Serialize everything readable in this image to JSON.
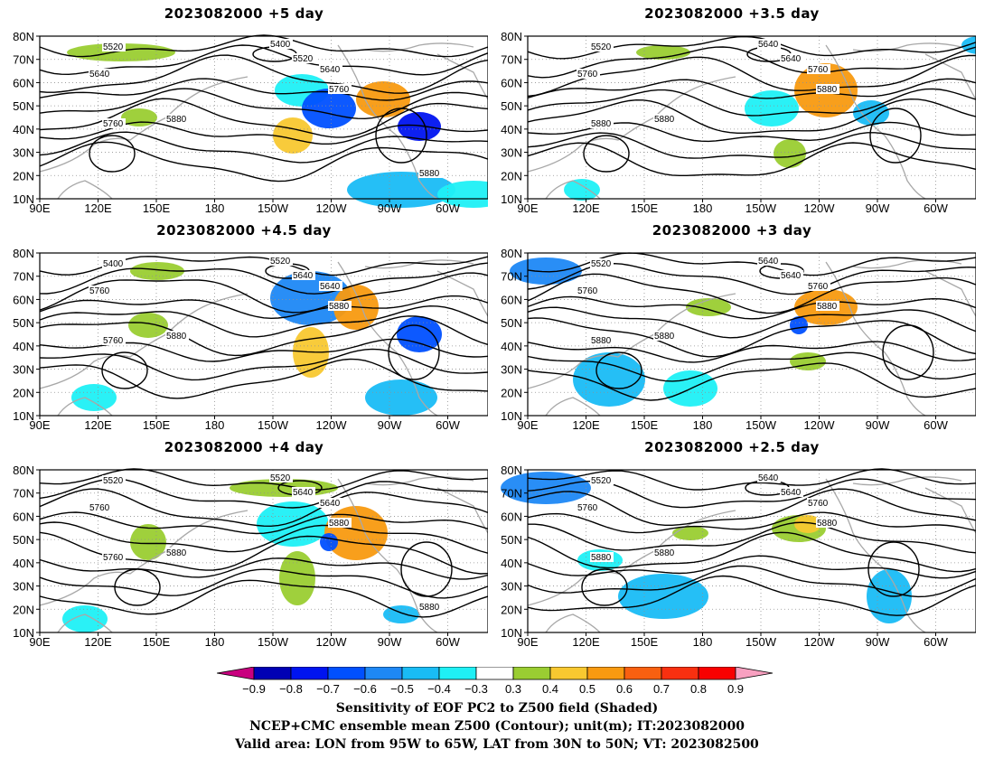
{
  "panels": [
    {
      "title": "2023082000  +5 day",
      "contours": [
        "5520",
        "5400",
        "5520",
        "5640",
        "5640",
        "5760",
        "5760",
        "5880",
        "5880"
      ]
    },
    {
      "title": "2023082000  +3.5 day",
      "contours": [
        "5520",
        "5640",
        "5640",
        "5760",
        "5760",
        "5880",
        "5880",
        "5880"
      ]
    },
    {
      "title": "2023082000  +4.5 day",
      "contours": [
        "5400",
        "5520",
        "5640",
        "5640",
        "5760",
        "5880",
        "5760",
        "5880"
      ]
    },
    {
      "title": "2023082000  +3 day",
      "contours": [
        "5520",
        "5640",
        "5640",
        "5760",
        "5760",
        "5880",
        "5880",
        "5880"
      ]
    },
    {
      "title": "2023082000  +4 day",
      "contours": [
        "5520",
        "5520",
        "5640",
        "5640",
        "5760",
        "5880",
        "5760",
        "5880",
        "5880"
      ]
    },
    {
      "title": "2023082000  +2.5 day",
      "contours": [
        "5520",
        "5640",
        "5640",
        "5760",
        "5760",
        "5880",
        "5880",
        "5880"
      ]
    }
  ],
  "axes": {
    "lat_ticks": [
      "80N",
      "70N",
      "60N",
      "50N",
      "40N",
      "30N",
      "20N",
      "10N"
    ],
    "lon_ticks": [
      "90E",
      "120E",
      "150E",
      "180",
      "150W",
      "120W",
      "90W",
      "60W"
    ]
  },
  "colorbar": {
    "tick_labels": [
      "−0.9",
      "−0.8",
      "−0.7",
      "−0.6",
      "−0.5",
      "−0.4",
      "−0.3",
      "0.3",
      "0.4",
      "0.5",
      "0.6",
      "0.7",
      "0.8",
      "0.9"
    ],
    "colors": [
      "#c9007f",
      "#0000b4",
      "#0014f0",
      "#0050ff",
      "#1e88f5",
      "#19bcf5",
      "#1ff0f5",
      "#ffffff",
      "#9acd32",
      "#f8c830",
      "#f89a10",
      "#f86010",
      "#f83010",
      "#f80000",
      "#f8a0c0"
    ]
  },
  "footer": {
    "line1": "Sensitivity of EOF PC2 to Z500 field (Shaded)",
    "line2": "NCEP+CMC ensemble mean Z500 (Contour); unit(m); IT:2023082000",
    "line3": "Valid area: LON from 95W to 65W, LAT from 30N to 50N; VT: 2023082500"
  }
}
